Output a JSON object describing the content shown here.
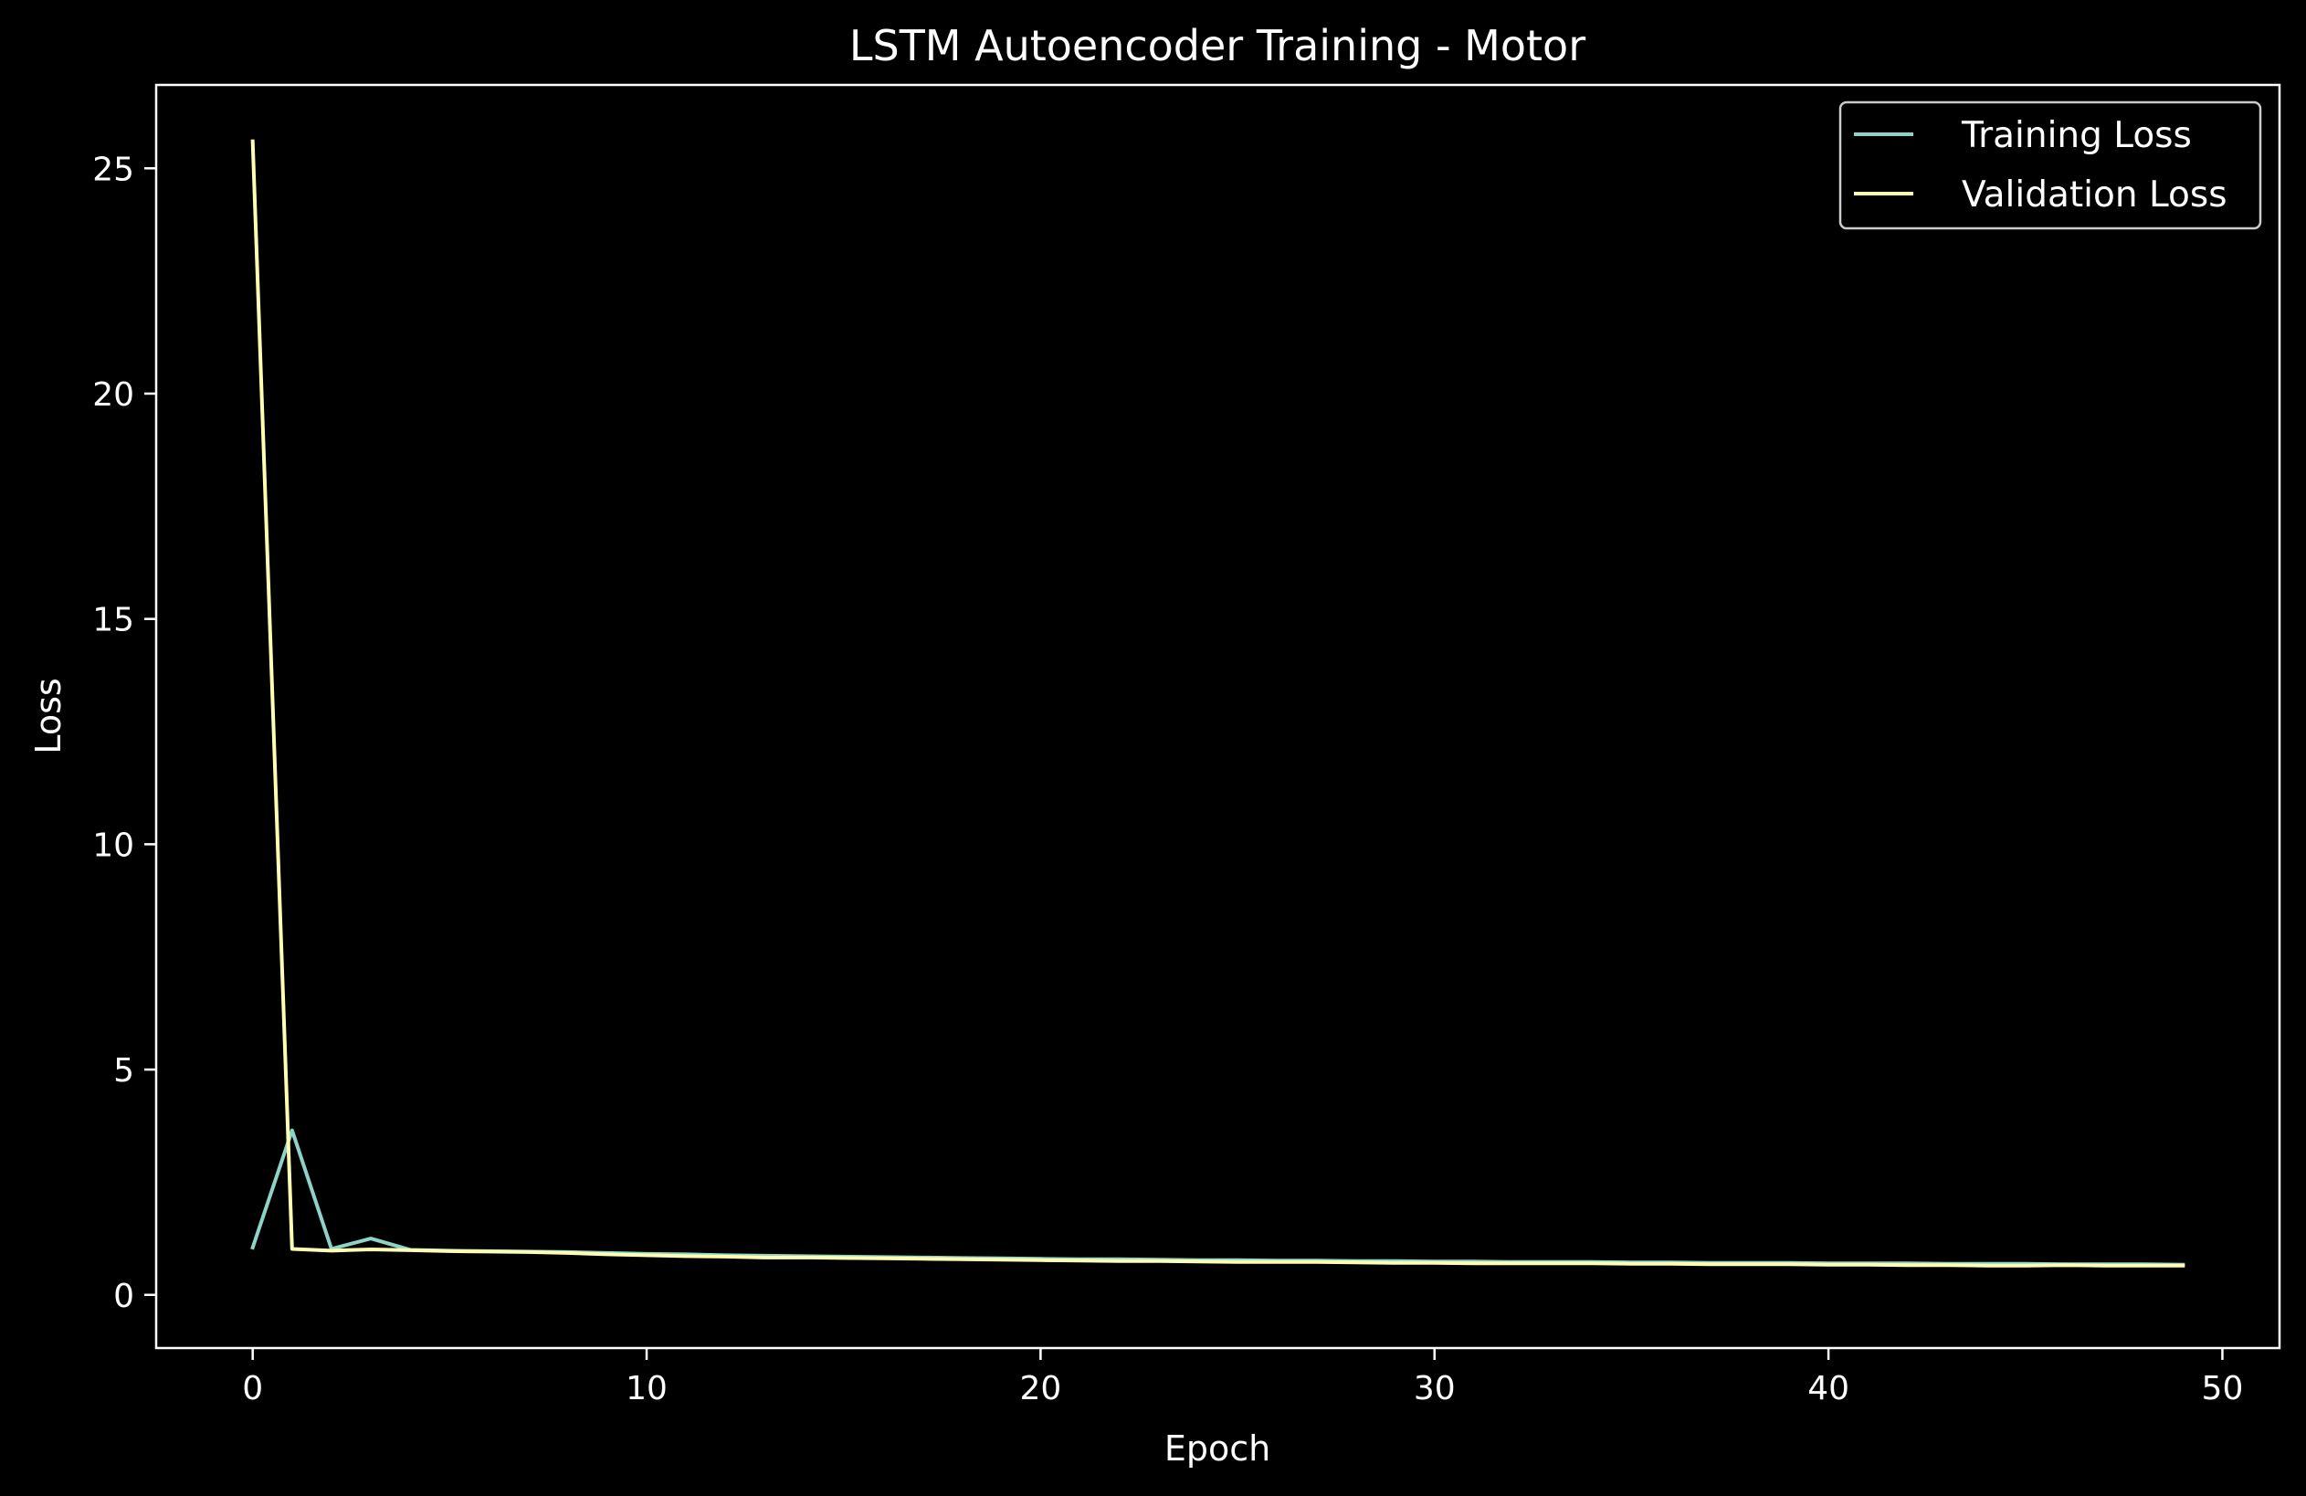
{
  "chart_data": {
    "type": "line",
    "title": "LSTM Autoencoder Training - Motor",
    "xlabel": "Epoch",
    "ylabel": "Loss",
    "xlim": [
      -2.45,
      51.45
    ],
    "ylim": [
      -1.18,
      26.85
    ],
    "xticks": [
      0,
      10,
      20,
      30,
      40,
      50
    ],
    "yticks": [
      0,
      5,
      10,
      15,
      20,
      25
    ],
    "grid": false,
    "legend_position": "top-right",
    "background": "#000000",
    "foreground": "#ffffff",
    "x": [
      0,
      1,
      2,
      3,
      4,
      5,
      6,
      7,
      8,
      9,
      10,
      11,
      12,
      13,
      14,
      15,
      16,
      17,
      18,
      19,
      20,
      21,
      22,
      23,
      24,
      25,
      26,
      27,
      28,
      29,
      30,
      31,
      32,
      33,
      34,
      35,
      36,
      37,
      38,
      39,
      40,
      41,
      42,
      43,
      44,
      45,
      46,
      47,
      48,
      49
    ],
    "series": [
      {
        "name": "Training Loss",
        "color": "#8dd3c7",
        "values": [
          1.05,
          3.65,
          1.02,
          1.25,
          1.0,
          0.98,
          0.97,
          0.96,
          0.95,
          0.93,
          0.91,
          0.9,
          0.88,
          0.87,
          0.86,
          0.85,
          0.84,
          0.83,
          0.82,
          0.81,
          0.8,
          0.79,
          0.79,
          0.78,
          0.77,
          0.77,
          0.76,
          0.76,
          0.75,
          0.75,
          0.74,
          0.74,
          0.73,
          0.73,
          0.73,
          0.72,
          0.72,
          0.71,
          0.71,
          0.71,
          0.7,
          0.7,
          0.7,
          0.69,
          0.69,
          0.69,
          0.68,
          0.68,
          0.68,
          0.67
        ]
      },
      {
        "name": "Validation Loss",
        "color": "#feffb3",
        "values": [
          25.6,
          1.02,
          0.98,
          1.01,
          0.99,
          0.97,
          0.96,
          0.95,
          0.93,
          0.9,
          0.88,
          0.86,
          0.85,
          0.83,
          0.83,
          0.82,
          0.81,
          0.8,
          0.79,
          0.78,
          0.77,
          0.76,
          0.75,
          0.75,
          0.74,
          0.73,
          0.73,
          0.73,
          0.72,
          0.71,
          0.71,
          0.7,
          0.7,
          0.7,
          0.7,
          0.69,
          0.69,
          0.68,
          0.68,
          0.68,
          0.67,
          0.67,
          0.66,
          0.66,
          0.65,
          0.65,
          0.66,
          0.65,
          0.65,
          0.65
        ]
      }
    ]
  }
}
